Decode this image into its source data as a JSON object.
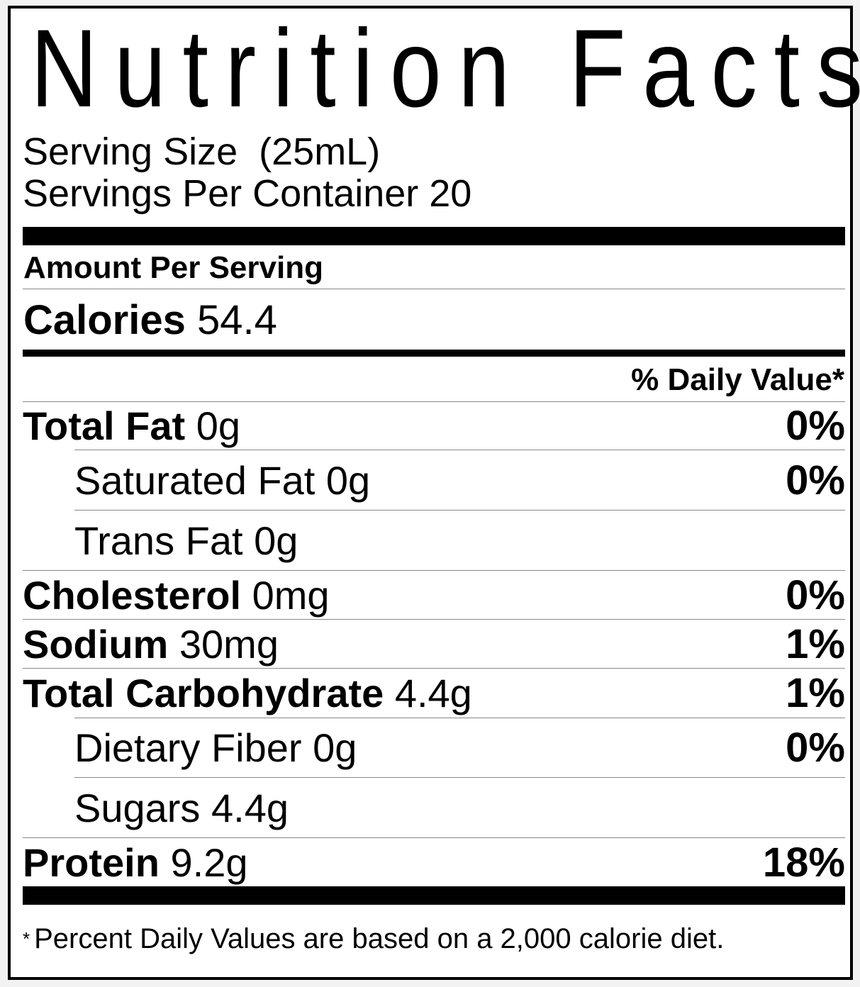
{
  "title": "Nutrition Facts",
  "serving_size": "Serving Size  (25mL)",
  "servings_per_container": "Servings Per Container 20",
  "amount_per_serving": "Amount Per Serving",
  "calories": {
    "label": "Calories",
    "value": "54.4"
  },
  "daily_value_header": "% Daily Value*",
  "nutrients": [
    {
      "label": "Total Fat",
      "amount": "0g",
      "dv": "0%"
    },
    {
      "label": "Saturated Fat",
      "amount": "0g",
      "dv": "0%"
    },
    {
      "label": "Trans Fat",
      "amount": "0g",
      "dv": ""
    },
    {
      "label": "Cholesterol",
      "amount": "0mg",
      "dv": "0%"
    },
    {
      "label": "Sodium",
      "amount": "30mg",
      "dv": "1%"
    },
    {
      "label": "Total Carbohydrate",
      "amount": "4.4g",
      "dv": "1%"
    },
    {
      "label": "Dietary Fiber",
      "amount": "0g",
      "dv": "0%"
    },
    {
      "label": "Sugars",
      "amount": "4.4g",
      "dv": ""
    },
    {
      "label": "Protein",
      "amount": "9.2g",
      "dv": "18%"
    }
  ],
  "footnote": {
    "star": "*",
    "text": "Percent Daily Values are based on a 2,000 calorie diet."
  }
}
